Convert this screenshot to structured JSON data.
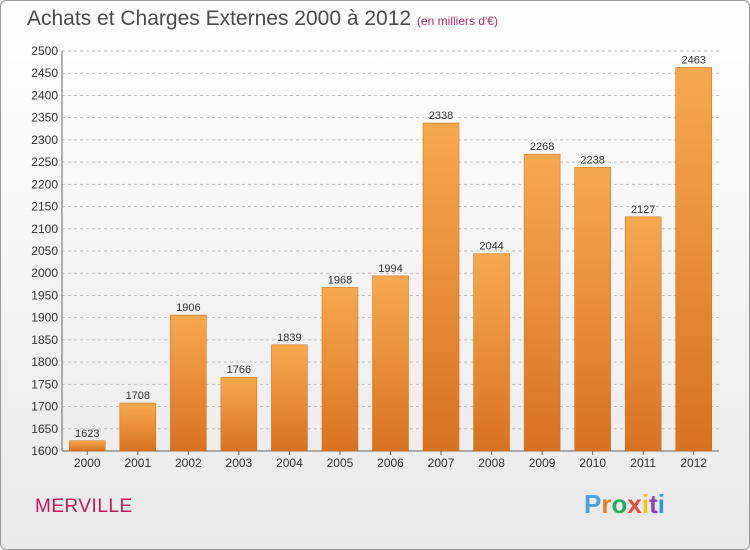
{
  "title": "Achats et Charges Externes 2000 à 2012",
  "subtitle": "(en milliers d'€)",
  "city": "MERVILLE",
  "logo": {
    "letters": [
      "P",
      "r",
      "o",
      "x",
      "i",
      "t",
      "i"
    ],
    "colors": [
      "#4aa3df",
      "#e67e22",
      "#27ae60",
      "#e74c3c",
      "#f1c40f",
      "#8e44ad",
      "#3498db"
    ]
  },
  "colors": {
    "bar_top": "#f7a94e",
    "bar_bottom": "#d9721f",
    "grid": "#c0c0c0",
    "title": "#4a4a4a",
    "city": "#c2185b"
  },
  "chart_data": {
    "type": "bar",
    "title": "Achats et Charges Externes 2000 à 2012",
    "subtitle": "(en milliers d'€)",
    "categories": [
      "2000",
      "2001",
      "2002",
      "2003",
      "2004",
      "2005",
      "2006",
      "2007",
      "2008",
      "2009",
      "2010",
      "2011",
      "2012"
    ],
    "values": [
      1623,
      1708,
      1906,
      1766,
      1839,
      1968,
      1994,
      2338,
      2044,
      2268,
      2238,
      2127,
      2463
    ],
    "ylim": [
      1600,
      2500
    ],
    "ytick_step": 50,
    "grid": true,
    "xlabel": "",
    "ylabel": ""
  }
}
